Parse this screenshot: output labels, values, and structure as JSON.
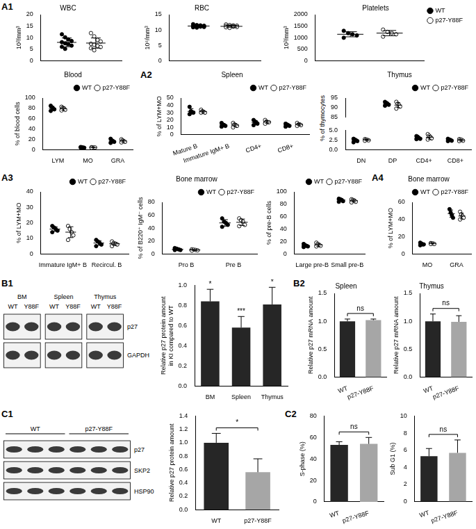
{
  "chart_data": [
    {
      "type": "scatter",
      "panel": "A1",
      "title": "WBC",
      "y_label": "10³/mm³",
      "categories": [
        null
      ],
      "tick_labels": "y",
      "ylim": [
        0,
        20
      ],
      "yticks": [
        0,
        5,
        10,
        15,
        20
      ],
      "series": [
        {
          "name": "WT",
          "color": "#000000",
          "marker": "circle",
          "values": [
            [
              11.5,
              10.2,
              9.3,
              8.6,
              8.1,
              7.6,
              7.2,
              6.6,
              6.1,
              5.2
            ]
          ],
          "mean": [
            8.0
          ],
          "sd": [
            1.9
          ]
        },
        {
          "name": "p27-Y88F",
          "color": "#000000",
          "marker": "open circle",
          "values": [
            [
              12.0,
              10.6,
              9.1,
              8.4,
              7.4,
              7.0,
              6.5,
              6.0,
              5.5,
              4.6
            ]
          ],
          "mean": [
            7.7
          ],
          "sd": [
            2.2
          ]
        }
      ]
    },
    {
      "type": "scatter",
      "title": "RBC",
      "y_label": "10⁶/mm³",
      "categories": [
        null
      ],
      "tick_labels": "y",
      "ylim": [
        0,
        15
      ],
      "yticks": [
        0,
        5,
        10,
        15
      ],
      "series": [
        {
          "name": "WT",
          "color": "#000000",
          "marker": "circle",
          "values": [
            [
              11.9,
              11.6,
              11.5,
              11.4,
              11.3,
              11.2,
              11.1,
              11.0,
              10.9,
              10.8,
              11.3
            ]
          ],
          "mean": [
            11.3
          ],
          "sd": [
            0.3
          ]
        },
        {
          "name": "p27-Y88F",
          "color": "#000000",
          "marker": "open circle",
          "values": [
            [
              11.8,
              11.6,
              11.5,
              11.4,
              11.3,
              11.2,
              11.1,
              11.0,
              10.9,
              10.7,
              11.2
            ]
          ],
          "mean": [
            11.2
          ],
          "sd": [
            0.3
          ]
        }
      ]
    },
    {
      "type": "scatter",
      "title": "Platelets",
      "y_label": "10³/mm³",
      "categories": [
        null
      ],
      "tick_labels": "y",
      "legend": "right",
      "ylim": [
        0,
        2000
      ],
      "yticks": [
        0,
        500,
        1000,
        1500,
        2000
      ],
      "series": [
        {
          "name": "WT",
          "color": "#000000",
          "marker": "circle",
          "values": [
            [
              1300,
              1200,
              1150,
              1100,
              1000
            ]
          ],
          "mean": [
            1150
          ],
          "sd": [
            110
          ]
        },
        {
          "name": "p27-Y88F",
          "color": "#000000",
          "marker": "open circle",
          "values": [
            [
              1350,
              1250,
              1200,
              1150,
              1050
            ]
          ],
          "mean": [
            1200
          ],
          "sd": [
            115
          ]
        }
      ]
    },
    {
      "type": "scatter",
      "title": "Blood",
      "y_label": "% of blood cells",
      "categories": [
        "LYM",
        "MO",
        "GRA"
      ],
      "legend": "top",
      "ylim": [
        0,
        100
      ],
      "yticks": [
        0,
        20,
        40,
        60,
        80,
        100
      ],
      "series": [
        {
          "name": "WT",
          "color": "#000000",
          "marker": "circle",
          "values": [
            [
              85,
              82,
              80,
              78,
              75
            ],
            [
              5,
              4.5,
              4,
              3.5,
              4
            ],
            [
              21,
              18,
              16,
              15,
              13
            ]
          ],
          "mean": [
            80,
            4.2,
            16.6
          ],
          "sd": [
            4,
            0.6,
            3
          ]
        },
        {
          "name": "p27-Y88F",
          "color": "#000000",
          "marker": "open circle",
          "values": [
            [
              83,
              81,
              80,
              77,
              76
            ],
            [
              4.5,
              4,
              3.8,
              4,
              3.5
            ],
            [
              20,
              18,
              16,
              15,
              14
            ]
          ],
          "mean": [
            79.4,
            4.0,
            16.6
          ],
          "sd": [
            3,
            0.4,
            2.5
          ]
        }
      ]
    },
    {
      "type": "scatter",
      "panel": "A2",
      "title": "Spleen",
      "y_label": "% of LYM+MO",
      "categories": [
        "Mature B",
        "Immature IgM+ B",
        "CD4+",
        "CD8+"
      ],
      "legend": "top",
      "ylim": [
        0,
        50
      ],
      "yticks": [
        0,
        10,
        20,
        30,
        40,
        50
      ],
      "series": [
        {
          "name": "WT",
          "color": "#000000",
          "marker": "circle",
          "values": [
            [
              38,
              32,
              31,
              30,
              28
            ],
            [
              16,
              14,
              13,
              12,
              11
            ],
            [
              20,
              18,
              17,
              15,
              13
            ],
            [
              15,
              14,
              13,
              12,
              11
            ]
          ],
          "mean": [
            31.8,
            13.2,
            16.6,
            13
          ],
          "sd": [
            3.7,
            1.9,
            2.7,
            1.6
          ]
        },
        {
          "name": "p27-Y88F",
          "color": "#000000",
          "marker": "open circle",
          "values": [
            [
              34,
              32,
              31,
              30,
              30
            ],
            [
              16,
              14,
              13,
              12,
              10
            ],
            [
              20,
              18,
              17,
              17,
              15
            ],
            [
              16,
              14,
              14,
              13,
              12
            ]
          ],
          "mean": [
            31.4,
            13,
            17.4,
            13.8
          ],
          "sd": [
            1.7,
            2.2,
            1.8,
            1.5
          ]
        }
      ]
    },
    {
      "type": "scatter",
      "title": "Thymus",
      "y_label": "% of thymocytes",
      "categories": [
        "DN",
        "DP",
        "CD4+",
        "CD8+"
      ],
      "legend": "top",
      "ylim": [
        0,
        95
      ],
      "ybreak": [
        5,
        85
      ],
      "yticks": [
        {
          "value": 0,
          "label": "0.0"
        },
        2.5,
        {
          "value": 5,
          "label": "5.0"
        },
        85,
        90,
        95
      ],
      "series": [
        {
          "name": "WT",
          "color": "#000000",
          "marker": "circle",
          "values": [
            [
              2.8,
              2.6,
              2.4,
              2.2,
              1.9
            ],
            [
              93,
              92.5,
              92,
              91.5,
              91
            ],
            [
              3.5,
              3.3,
              3.0,
              2.8,
              2.7
            ],
            [
              2.8,
              2.6,
              2.5,
              2.3,
              2.2
            ]
          ],
          "mean": [
            2.4,
            92,
            3.0,
            2.5
          ],
          "sd": [
            0.35,
            0.8,
            0.3,
            0.25
          ]
        },
        {
          "name": "p27-Y88F",
          "color": "#000000",
          "marker": "open circle",
          "values": [
            [
              2.7,
              2.6,
              2.5,
              2.4,
              2.3
            ],
            [
              93,
              92,
              91.5,
              90.5,
              89.5
            ],
            [
              4.0,
              3.6,
              3.3,
              2.9,
              2.6
            ],
            [
              2.7,
              2.6,
              2.5,
              2.3,
              2.2
            ]
          ],
          "mean": [
            2.5,
            91.3,
            3.2,
            2.4
          ],
          "sd": [
            0.15,
            1.3,
            0.5,
            0.2
          ]
        }
      ]
    },
    {
      "type": "scatter",
      "panel": "A3",
      "y_label": "% of LYM+MO",
      "categories": [
        "Immature IgM+ B",
        "Recircul. B"
      ],
      "legend": "top",
      "ylim": [
        0,
        40
      ],
      "yticks": [
        0,
        10,
        20,
        30,
        40
      ],
      "series": [
        {
          "name": "WT",
          "color": "#000000",
          "marker": "circle",
          "values": [
            [
              18,
              17,
              16,
              15,
              14
            ],
            [
              9,
              8,
              7,
              6,
              5
            ]
          ],
          "mean": [
            16,
            7
          ],
          "sd": [
            1.5,
            1.5
          ]
        },
        {
          "name": "p27-Y88F",
          "color": "#000000",
          "marker": "open circle",
          "values": [
            [
              18,
              16,
              14,
              12,
              9
            ],
            [
              8,
              7,
              6.5,
              6,
              5
            ]
          ],
          "mean": [
            14,
            6.5
          ],
          "sd": [
            3.5,
            1
          ]
        }
      ]
    },
    {
      "type": "scatter",
      "title": "Bone marrow",
      "y_label": "% of B220⁺ IgM⁻ cells",
      "categories": [
        "Pro B",
        "Pre B"
      ],
      "legend": "top",
      "ylim": [
        0,
        80
      ],
      "yticks": [
        0,
        20,
        40,
        60,
        80
      ],
      "series": [
        {
          "name": "WT",
          "color": "#000000",
          "marker": "circle",
          "values": [
            [
              9,
              8,
              7,
              6,
              6
            ],
            [
              55,
              50,
              48,
              45,
              42
            ]
          ],
          "mean": [
            7,
            48
          ],
          "sd": [
            1.2,
            5
          ]
        },
        {
          "name": "p27-Y88F",
          "color": "#000000",
          "marker": "open circle",
          "values": [
            [
              7,
              6.5,
              6,
              5.5,
              5
            ],
            [
              55,
              52,
              50,
              45,
              43
            ]
          ],
          "mean": [
            6,
            49
          ],
          "sd": [
            0.7,
            5
          ]
        }
      ]
    },
    {
      "type": "scatter",
      "y_label": "% of pre-B cells",
      "categories": [
        "Large pre-B",
        "Small pre-B"
      ],
      "legend": "top",
      "ylim": [
        0,
        100
      ],
      "yticks": [
        0,
        20,
        40,
        60,
        80,
        100
      ],
      "series": [
        {
          "name": "WT",
          "color": "#000000",
          "marker": "circle",
          "values": [
            [
              16,
              14,
              13,
              12,
              11
            ],
            [
              89,
              88,
              87,
              85,
              84
            ]
          ],
          "mean": [
            13,
            87
          ],
          "sd": [
            2,
            2
          ]
        },
        {
          "name": "p27-Y88F",
          "color": "#000000",
          "marker": "open circle",
          "values": [
            [
              18,
              16,
              14,
              13,
              12
            ],
            [
              88,
              87,
              86,
              84,
              83
            ]
          ],
          "mean": [
            14.6,
            85.6
          ],
          "sd": [
            2.4,
            2
          ]
        }
      ]
    },
    {
      "type": "scatter",
      "panel": "A4",
      "title": "Bone marrow",
      "y_label": "% of LYM+MO",
      "categories": [
        "MO",
        "GRA"
      ],
      "legend": "top",
      "ylim": [
        0,
        60
      ],
      "yticks": [
        0,
        20,
        40,
        60
      ],
      "series": [
        {
          "name": "WT",
          "color": "#000000",
          "marker": "circle",
          "values": [
            [
              13,
              12,
              11,
              11,
              10
            ],
            [
              52,
              48,
              45,
              42
            ]
          ],
          "mean": [
            11.4,
            46.8
          ],
          "sd": [
            1.1,
            4.2
          ]
        },
        {
          "name": "p27-Y88F",
          "color": "#000000",
          "marker": "open circle",
          "values": [
            [
              12.5,
              12,
              12,
              11.5,
              11.5
            ],
            [
              49,
              46,
              44,
              42,
              40
            ]
          ],
          "mean": [
            12,
            44
          ],
          "sd": [
            0.4,
            3.4
          ]
        }
      ]
    },
    {
      "type": "bar",
      "y_label": [
        "Relative p27 protein amount",
        "in KI compared to WT"
      ],
      "categories": [
        "BM",
        "Spleen",
        "Thymus"
      ],
      "values": [
        0.84,
        0.58,
        0.81
      ],
      "errors": [
        0.12,
        0.11,
        0.17
      ],
      "annotations": [
        "*",
        "***",
        "*"
      ],
      "color": "#262626",
      "ylim": [
        0,
        1
      ],
      "yticks": [
        {
          "value": 0,
          "label": "0.0"
        },
        0.2,
        0.4,
        0.6,
        0.8,
        {
          "value": 1,
          "label": "1.0"
        }
      ]
    },
    {
      "type": "bar",
      "panel": "B2",
      "title": "Spleen",
      "y_label": "Relative p27 mRNA amount",
      "categories": [
        "WT",
        "p27-Y88F"
      ],
      "values": [
        1.0,
        1.02
      ],
      "errors": [
        0.04,
        0.02
      ],
      "annotations": "ns",
      "colors": [
        "#262626",
        "#a6a6a6"
      ],
      "ylim": [
        0,
        1.5
      ],
      "yticks": [
        {
          "value": 0,
          "label": "0.0"
        },
        0.5,
        {
          "value": 1,
          "label": "1.0"
        },
        1.5
      ]
    },
    {
      "type": "bar",
      "title": "Thymus",
      "y_label": "Relative p27 mRNA amount",
      "categories": [
        "WT",
        "p27-Y88F"
      ],
      "values": [
        1.0,
        0.99
      ],
      "errors": [
        0.13,
        0.11
      ],
      "annotations": "ns",
      "colors": [
        "#262626",
        "#a6a6a6"
      ],
      "ylim": [
        0,
        1.5
      ],
      "yticks": [
        {
          "value": 0,
          "label": "0.0"
        },
        0.5,
        {
          "value": 1,
          "label": "1.0"
        },
        1.5
      ]
    },
    {
      "type": "bar",
      "y_label": "Relative p27 protein amount",
      "categories": [
        "WT",
        "p27-Y88F"
      ],
      "values": [
        1.0,
        0.56
      ],
      "errors": [
        0.14,
        0.2
      ],
      "annotations": "*",
      "colors": [
        "#262626",
        "#a6a6a6"
      ],
      "ylim": [
        0,
        1.4
      ],
      "yticks": [
        {
          "value": 0,
          "label": "0.0"
        },
        0.2,
        0.4,
        0.6,
        0.8,
        {
          "value": 1,
          "label": "1.0"
        },
        1.2,
        1.4
      ]
    },
    {
      "type": "bar",
      "panel": "C2",
      "y_label": "S-phase (%)",
      "categories": [
        "WT",
        "p27-Y88F"
      ],
      "values": [
        53,
        54
      ],
      "errors": [
        3,
        6
      ],
      "annotations": "ns",
      "colors": [
        "#262626",
        "#a6a6a6"
      ],
      "ylim": [
        0,
        80
      ],
      "yticks": [
        0,
        20,
        40,
        60,
        80
      ]
    },
    {
      "type": "bar",
      "y_label": "Sub G1 (%)",
      "categories": [
        "WT",
        "p27-Y88F"
      ],
      "values": [
        5.3,
        5.7
      ],
      "errors": [
        0.9,
        1.5
      ],
      "annotations": "ns",
      "colors": [
        "#262626",
        "#a6a6a6"
      ],
      "ylim": [
        0,
        10
      ],
      "yticks": [
        0,
        2,
        4,
        6,
        8,
        10
      ]
    }
  ],
  "blots": [
    {
      "panel": "B1",
      "groups": [
        {
          "name": "BM",
          "lanes": [
            "WT",
            "Y88F"
          ]
        },
        {
          "name": "Spleen",
          "lanes": [
            "WT",
            "Y88F"
          ]
        },
        {
          "name": "Thymus",
          "lanes": [
            "WT",
            "Y88F"
          ]
        }
      ],
      "rows": [
        "p27",
        "GAPDH"
      ]
    },
    {
      "panel": "C1",
      "groups": [
        {
          "name": "WT",
          "lanes": [
            null,
            null,
            null
          ]
        },
        {
          "name": "p27-Y88F",
          "lanes": [
            null,
            null,
            null
          ]
        }
      ],
      "rows": [
        "p27",
        "SKP2",
        "HSP90"
      ]
    }
  ]
}
